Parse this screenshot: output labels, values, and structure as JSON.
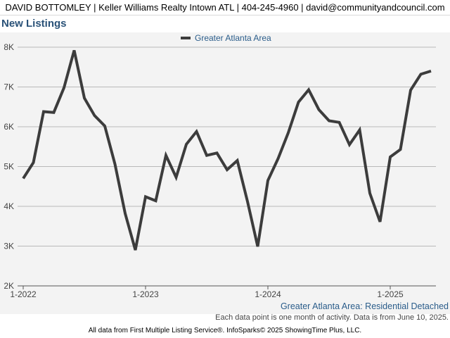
{
  "header": {
    "text": "DAVID BOTTOMLEY | Keller Williams Realty Intown ATL | 404-245-4960 | david@communityandcouncil.com"
  },
  "chart_data": {
    "type": "line",
    "title": "New Listings",
    "xlabel": "",
    "ylabel": "",
    "ylim": [
      2000,
      8000
    ],
    "y_ticks": [
      2000,
      3000,
      4000,
      5000,
      6000,
      7000,
      8000
    ],
    "y_tick_labels": [
      "2K",
      "3K",
      "4K",
      "5K",
      "6K",
      "7K",
      "8K"
    ],
    "x_tick_labels": [
      "1-2022",
      "1-2023",
      "1-2024",
      "1-2025"
    ],
    "x_tick_index": [
      0,
      12,
      24,
      36
    ],
    "x": [
      "1-2022",
      "2-2022",
      "3-2022",
      "4-2022",
      "5-2022",
      "6-2022",
      "7-2022",
      "8-2022",
      "9-2022",
      "10-2022",
      "11-2022",
      "12-2022",
      "1-2023",
      "2-2023",
      "3-2023",
      "4-2023",
      "5-2023",
      "6-2023",
      "7-2023",
      "8-2023",
      "9-2023",
      "10-2023",
      "11-2023",
      "12-2023",
      "1-2024",
      "2-2024",
      "3-2024",
      "4-2024",
      "5-2024",
      "6-2024",
      "7-2024",
      "8-2024",
      "9-2024",
      "10-2024",
      "11-2024",
      "12-2024",
      "1-2025",
      "2-2025",
      "3-2025",
      "4-2025",
      "5-2025"
    ],
    "series": [
      {
        "name": "Greater Atlanta Area",
        "color": "#3c3c3c",
        "values": [
          4700,
          5100,
          6380,
          6360,
          6980,
          7920,
          6720,
          6280,
          6020,
          5060,
          3820,
          2900,
          4240,
          4140,
          5280,
          4730,
          5560,
          5880,
          5280,
          5340,
          4920,
          5150,
          4120,
          2990,
          4650,
          5200,
          5850,
          6620,
          6930,
          6430,
          6150,
          6110,
          5550,
          5920,
          4330,
          3610,
          5240,
          5430,
          6920,
          7320,
          7400
        ]
      }
    ],
    "grid": true,
    "legend_position": "top-center"
  },
  "caption": {
    "area_label": "Greater Atlanta Area: Residential Detached",
    "note": "Each data point is one month of activity. Data is from June 10, 2025."
  },
  "footer": {
    "text": "All data from First Multiple Listing Service®. InfoSparks© 2025 ShowingTime Plus, LLC."
  }
}
